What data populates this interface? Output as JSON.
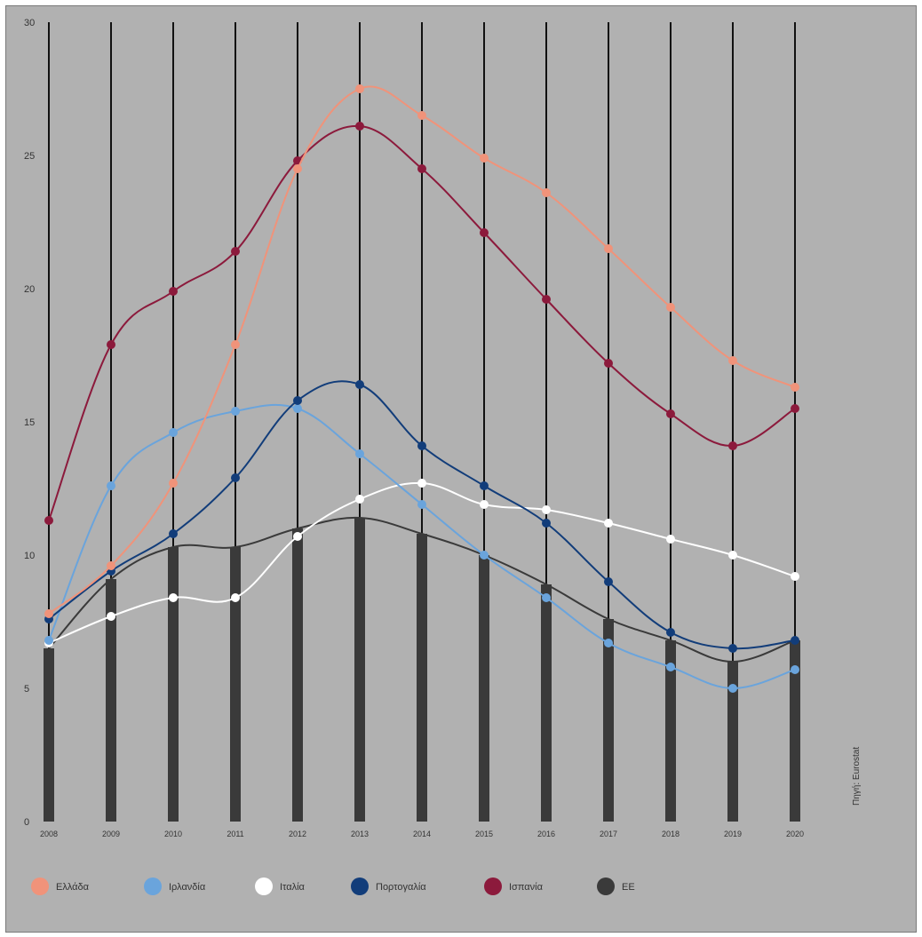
{
  "chart_data": {
    "type": "line",
    "x": [
      "2008",
      "2009",
      "2010",
      "2011",
      "2012",
      "2013",
      "2014",
      "2015",
      "2016",
      "2017",
      "2018",
      "2019",
      "2020"
    ],
    "ylim": [
      0,
      30
    ],
    "yticks": [
      0,
      5,
      10,
      15,
      20,
      25,
      30
    ],
    "grid": "vertical lines at each year",
    "legend_position": "bottom",
    "source": "Πηγή: Eurostat",
    "series": [
      {
        "name": "Ελλάδα",
        "color": "#f0937a",
        "render": "line",
        "values": [
          7.8,
          9.6,
          12.7,
          17.9,
          24.5,
          27.5,
          26.5,
          24.9,
          23.6,
          21.5,
          19.3,
          17.3,
          16.3
        ]
      },
      {
        "name": "Ιρλανδία",
        "color": "#6aa4dc",
        "render": "line",
        "values": [
          6.8,
          12.6,
          14.6,
          15.4,
          15.5,
          13.8,
          11.9,
          10.0,
          8.4,
          6.7,
          5.8,
          5.0,
          5.7
        ]
      },
      {
        "name": "Ιταλία",
        "color": "#ffffff",
        "render": "line",
        "values": [
          6.7,
          7.7,
          8.4,
          8.4,
          10.7,
          12.1,
          12.7,
          11.9,
          11.7,
          11.2,
          10.6,
          10.0,
          9.2
        ]
      },
      {
        "name": "Πορτογαλία",
        "color": "#123d7a",
        "render": "line",
        "values": [
          7.6,
          9.4,
          10.8,
          12.9,
          15.8,
          16.4,
          14.1,
          12.6,
          11.2,
          9.0,
          7.1,
          6.5,
          6.8
        ]
      },
      {
        "name": "Ισπανία",
        "color": "#8c1a3c",
        "render": "line",
        "values": [
          11.3,
          17.9,
          19.9,
          21.4,
          24.8,
          26.1,
          24.5,
          22.1,
          19.6,
          17.2,
          15.3,
          14.1,
          15.5
        ]
      },
      {
        "name": "ΕΕ",
        "color": "#3a3a3a",
        "render": "bar",
        "values": [
          6.5,
          9.1,
          10.3,
          10.3,
          11.0,
          11.4,
          10.8,
          10.0,
          8.9,
          7.6,
          6.8,
          6.0,
          6.8
        ]
      }
    ]
  }
}
